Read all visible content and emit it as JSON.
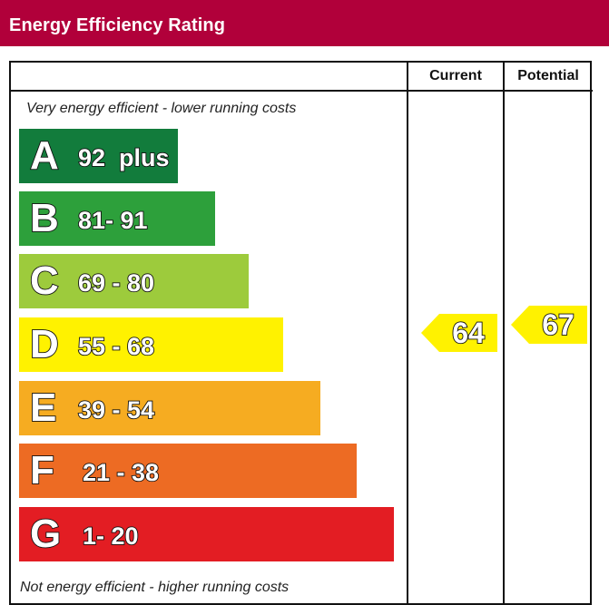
{
  "header": {
    "title": "Energy Efficiency Rating"
  },
  "columns": {
    "current": "Current",
    "potential": "Potential"
  },
  "captions": {
    "top": "Very energy efficient - lower running costs",
    "bottom": "Not energy efficient - higher running costs"
  },
  "chart_data": {
    "type": "bar",
    "title": "Energy Efficiency Rating",
    "bands": [
      {
        "letter": "A",
        "range": "92  plus",
        "color": "#127c3c"
      },
      {
        "letter": "B",
        "range": "81- 91",
        "color": "#2da03b"
      },
      {
        "letter": "C",
        "range": "69 - 80",
        "color": "#9dcb3c"
      },
      {
        "letter": "D",
        "range": "55 - 68",
        "color": "#fff200"
      },
      {
        "letter": "E",
        "range": "39 - 54",
        "color": "#f6ac21"
      },
      {
        "letter": "F",
        "range": "21 - 38",
        "color": "#ed6b23"
      },
      {
        "letter": "G",
        "range": "1- 20",
        "color": "#e31d23"
      }
    ],
    "current": {
      "value": 64,
      "band": "D",
      "color": "#fff200"
    },
    "potential": {
      "value": 67,
      "band": "D",
      "color": "#fff200"
    }
  }
}
